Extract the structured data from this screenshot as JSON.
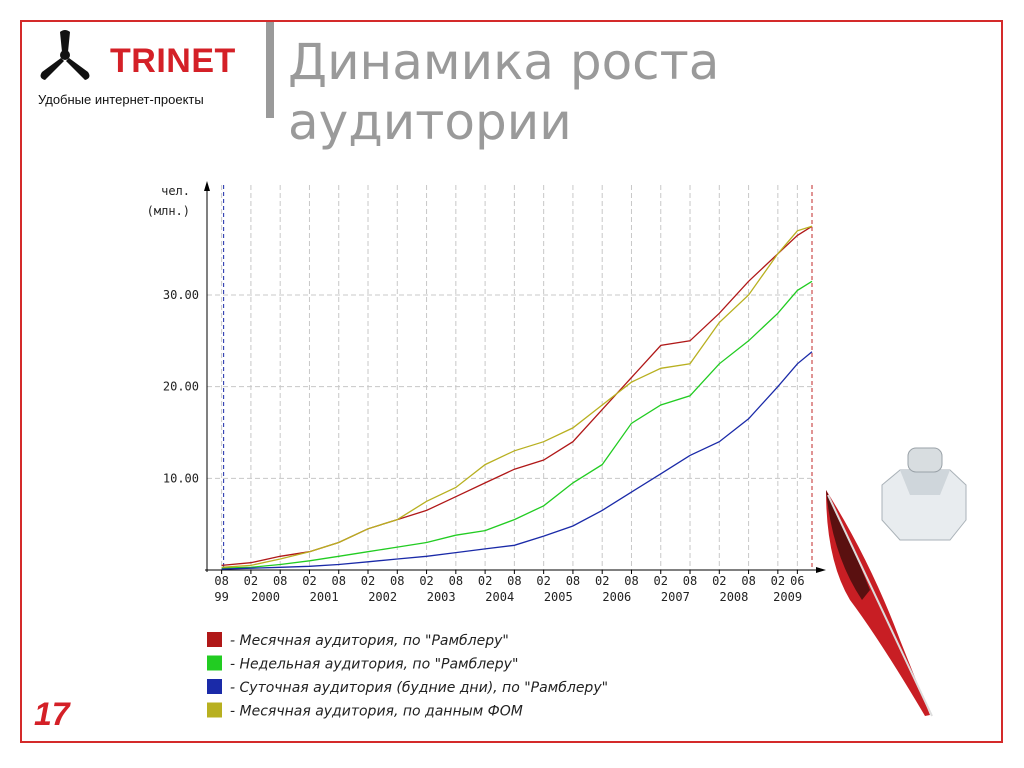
{
  "logo": {
    "name": "TRINET",
    "tagline": "Удобные интернет-проекты"
  },
  "title": "Динамика роста аудитории",
  "page_number": "17",
  "chart_data": {
    "type": "line",
    "ylabel": [
      "чел.",
      "(млн.)"
    ],
    "x": [
      "1999-08",
      "2000-02",
      "2000-08",
      "2001-02",
      "2001-08",
      "2002-02",
      "2002-08",
      "2003-02",
      "2003-08",
      "2004-02",
      "2004-08",
      "2005-02",
      "2005-08",
      "2006-02",
      "2006-08",
      "2007-02",
      "2007-08",
      "2008-02",
      "2008-08",
      "2009-02",
      "2009-06",
      "2009-09"
    ],
    "xlim": [
      "1999-05",
      "2009-09"
    ],
    "xticks": [
      {
        "value": "1999-08",
        "label": "08"
      },
      {
        "value": "2000-02",
        "label": "02"
      },
      {
        "value": "2000-08",
        "label": "08"
      },
      {
        "value": "2001-02",
        "label": "02"
      },
      {
        "value": "2001-08",
        "label": "08"
      },
      {
        "value": "2002-02",
        "label": "02"
      },
      {
        "value": "2002-08",
        "label": "08"
      },
      {
        "value": "2003-02",
        "label": "02"
      },
      {
        "value": "2003-08",
        "label": "08"
      },
      {
        "value": "2004-02",
        "label": "02"
      },
      {
        "value": "2004-08",
        "label": "08"
      },
      {
        "value": "2005-02",
        "label": "02"
      },
      {
        "value": "2005-08",
        "label": "08"
      },
      {
        "value": "2006-02",
        "label": "02"
      },
      {
        "value": "2006-08",
        "label": "08"
      },
      {
        "value": "2007-02",
        "label": "02"
      },
      {
        "value": "2007-08",
        "label": "08"
      },
      {
        "value": "2008-02",
        "label": "02"
      },
      {
        "value": "2008-08",
        "label": "08"
      },
      {
        "value": "2009-02",
        "label": "02"
      },
      {
        "value": "2009-06",
        "label": "06"
      }
    ],
    "xyears": [
      {
        "value": "1999-08",
        "label": "99"
      },
      {
        "value": "2000-05",
        "label": "2000"
      },
      {
        "value": "2001-05",
        "label": "2001"
      },
      {
        "value": "2002-05",
        "label": "2002"
      },
      {
        "value": "2003-05",
        "label": "2003"
      },
      {
        "value": "2004-05",
        "label": "2004"
      },
      {
        "value": "2005-05",
        "label": "2005"
      },
      {
        "value": "2006-05",
        "label": "2006"
      },
      {
        "value": "2007-05",
        "label": "2007"
      },
      {
        "value": "2008-05",
        "label": "2008"
      },
      {
        "value": "2009-04",
        "label": "2009"
      }
    ],
    "ylim": [
      0,
      42
    ],
    "yticks": [
      {
        "value": 10,
        "label": "10.00"
      },
      {
        "value": 20,
        "label": "20.00"
      },
      {
        "value": 30,
        "label": "30.00"
      }
    ],
    "grid": true,
    "legend": "bottom",
    "series": [
      {
        "name": "- Месячная аудитория, по \"Рамблеру\"",
        "color": "#b01818",
        "values": [
          0.5,
          0.8,
          1.5,
          2.0,
          3.0,
          4.5,
          5.5,
          6.5,
          8,
          9.5,
          11,
          12,
          14,
          17.5,
          21,
          24.5,
          25,
          28,
          31.5,
          34.5,
          36.5,
          37.5
        ]
      },
      {
        "name": "- Недельная аудитория, по \"Рамблеру\"",
        "color": "#22cc22",
        "values": [
          0.2,
          0.3,
          0.6,
          1,
          1.5,
          2,
          2.5,
          3,
          3.8,
          4.3,
          5.5,
          7,
          9.5,
          11.5,
          16,
          18,
          19,
          22.5,
          25,
          28,
          30.5,
          31.5
        ]
      },
      {
        "name": "- Суточная аудитория (будние дни), по \"Рамблеру\"",
        "color": "#1a2aa8",
        "values": [
          0.1,
          0.2,
          0.3,
          0.4,
          0.6,
          0.9,
          1.2,
          1.5,
          1.9,
          2.3,
          2.7,
          3.7,
          4.8,
          6.5,
          8.5,
          10.5,
          12.5,
          14,
          16.5,
          20,
          22.5,
          23.8
        ]
      },
      {
        "name": "- Месячная аудитория, по данным ФОМ",
        "color": "#b8b020",
        "values": [
          0.3,
          0.5,
          1.2,
          2,
          3,
          4.5,
          5.5,
          7.5,
          9,
          11.5,
          13,
          14,
          15.5,
          18,
          20.5,
          22,
          22.5,
          27,
          30,
          34.5,
          37,
          37.5
        ]
      }
    ]
  }
}
